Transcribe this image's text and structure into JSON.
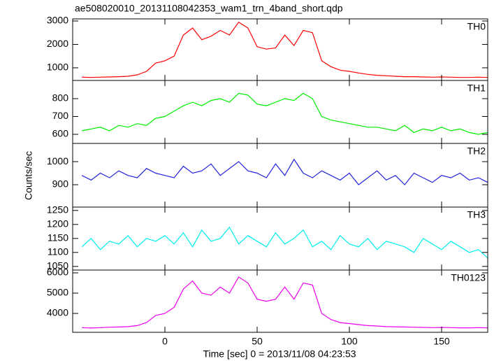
{
  "title": "ae508020010_20131108042353_wam1_trn_4band_short.qdp",
  "x_label": "Time [sec] 0 = 2013/11/08 04:23:53",
  "y_label": "Counts/sec",
  "chart_data": [
    {
      "type": "line",
      "label": "TH0",
      "color": "#ff0000",
      "x": [
        -45,
        -40,
        -35,
        -30,
        -25,
        -20,
        -15,
        -10,
        -5,
        0,
        5,
        10,
        15,
        20,
        25,
        30,
        35,
        40,
        45,
        50,
        55,
        60,
        65,
        70,
        75,
        80,
        85,
        90,
        95,
        100,
        105,
        110,
        115,
        120,
        125,
        130,
        135,
        140,
        145,
        150,
        155,
        160,
        165,
        170,
        175
      ],
      "values": [
        600,
        590,
        600,
        610,
        620,
        640,
        700,
        850,
        1200,
        1300,
        1500,
        2400,
        2700,
        2200,
        2350,
        2600,
        2400,
        2950,
        2700,
        1900,
        1800,
        1850,
        2400,
        1950,
        2600,
        2500,
        1300,
        1050,
        900,
        850,
        780,
        720,
        680,
        660,
        640,
        620,
        620,
        610,
        600,
        610,
        600,
        590,
        590,
        600,
        590
      ],
      "xlim": [
        -50,
        175
      ],
      "ylim": [
        460,
        3090
      ],
      "yticks": [
        1000,
        2000,
        3000
      ],
      "xticks": [
        0,
        50,
        100,
        150
      ]
    },
    {
      "type": "line",
      "label": "TH1",
      "color": "#00ee00",
      "x": [
        -45,
        -40,
        -35,
        -30,
        -25,
        -20,
        -15,
        -10,
        -5,
        0,
        5,
        10,
        15,
        20,
        25,
        30,
        35,
        40,
        45,
        50,
        55,
        60,
        65,
        70,
        75,
        80,
        85,
        90,
        95,
        100,
        105,
        110,
        115,
        120,
        125,
        130,
        135,
        140,
        145,
        150,
        155,
        160,
        165,
        170,
        175
      ],
      "values": [
        620,
        630,
        640,
        620,
        650,
        640,
        660,
        650,
        690,
        700,
        730,
        760,
        780,
        760,
        790,
        800,
        780,
        830,
        820,
        770,
        760,
        780,
        800,
        790,
        830,
        800,
        700,
        680,
        670,
        660,
        650,
        640,
        640,
        630,
        620,
        650,
        610,
        630,
        620,
        640,
        620,
        630,
        610,
        600,
        610
      ],
      "xlim": [
        -50,
        175
      ],
      "ylim": [
        549,
        902
      ],
      "yticks": [
        600,
        700,
        800
      ],
      "xticks": [
        0,
        50,
        100,
        150
      ]
    },
    {
      "type": "line",
      "label": "TH2",
      "color": "#2222dd",
      "x": [
        -45,
        -40,
        -35,
        -30,
        -25,
        -20,
        -15,
        -10,
        -5,
        0,
        5,
        10,
        15,
        20,
        25,
        30,
        35,
        40,
        45,
        50,
        55,
        60,
        65,
        70,
        75,
        80,
        85,
        90,
        95,
        100,
        105,
        110,
        115,
        120,
        125,
        130,
        135,
        140,
        145,
        150,
        155,
        160,
        165,
        170,
        175
      ],
      "values": [
        940,
        920,
        950,
        930,
        960,
        940,
        930,
        970,
        950,
        940,
        930,
        980,
        950,
        960,
        990,
        940,
        970,
        1000,
        960,
        950,
        930,
        990,
        940,
        1010,
        950,
        930,
        960,
        940,
        920,
        950,
        900,
        930,
        960,
        920,
        940,
        900,
        950,
        930,
        910,
        940,
        930,
        950,
        920,
        930,
        910
      ],
      "xlim": [
        -50,
        175
      ],
      "ylim": [
        803,
        1079
      ],
      "yticks": [
        900,
        1000
      ],
      "xticks": [
        0,
        50,
        100,
        150
      ]
    },
    {
      "type": "line",
      "label": "TH3",
      "color": "#00eeee",
      "x": [
        -45,
        -40,
        -35,
        -30,
        -25,
        -20,
        -15,
        -10,
        -5,
        0,
        5,
        10,
        15,
        20,
        25,
        30,
        35,
        40,
        45,
        50,
        55,
        60,
        65,
        70,
        75,
        80,
        85,
        90,
        95,
        100,
        105,
        110,
        115,
        120,
        125,
        130,
        135,
        140,
        145,
        150,
        155,
        160,
        165,
        170,
        175
      ],
      "values": [
        1120,
        1150,
        1110,
        1140,
        1130,
        1160,
        1120,
        1150,
        1140,
        1160,
        1130,
        1170,
        1120,
        1180,
        1140,
        1150,
        1190,
        1130,
        1160,
        1140,
        1120,
        1170,
        1130,
        1150,
        1180,
        1120,
        1140,
        1110,
        1160,
        1130,
        1120,
        1150,
        1110,
        1140,
        1130,
        1120,
        1100,
        1150,
        1130,
        1110,
        1140,
        1120,
        1100,
        1110,
        1080
      ],
      "xlim": [
        -50,
        175
      ],
      "ylim": [
        1037,
        1262
      ],
      "yticks": [
        1050,
        1100,
        1150,
        1200,
        1250
      ],
      "xticks": [
        0,
        50,
        100,
        150
      ]
    },
    {
      "type": "line",
      "label": "TH0123",
      "color": "#ee00ee",
      "x": [
        -45,
        -40,
        -35,
        -30,
        -25,
        -20,
        -15,
        -10,
        -5,
        0,
        5,
        10,
        15,
        20,
        25,
        30,
        35,
        40,
        45,
        50,
        55,
        60,
        65,
        70,
        75,
        80,
        85,
        90,
        95,
        100,
        105,
        110,
        115,
        120,
        125,
        130,
        135,
        140,
        145,
        150,
        155,
        160,
        165,
        170,
        175
      ],
      "values": [
        3300,
        3280,
        3300,
        3320,
        3330,
        3350,
        3400,
        3550,
        3900,
        4000,
        4300,
        5200,
        5600,
        5000,
        4900,
        5300,
        5000,
        5800,
        5500,
        4700,
        4600,
        4700,
        5300,
        4700,
        5500,
        5400,
        4000,
        3700,
        3550,
        3500,
        3450,
        3400,
        3380,
        3350,
        3340,
        3330,
        3320,
        3310,
        3300,
        3310,
        3300,
        3290,
        3290,
        3300,
        3290
      ],
      "xlim": [
        -50,
        175
      ],
      "ylim": [
        3069,
        6138
      ],
      "yticks": [
        4000,
        5000,
        6000
      ],
      "xticks": [
        0,
        50,
        100,
        150
      ]
    }
  ]
}
